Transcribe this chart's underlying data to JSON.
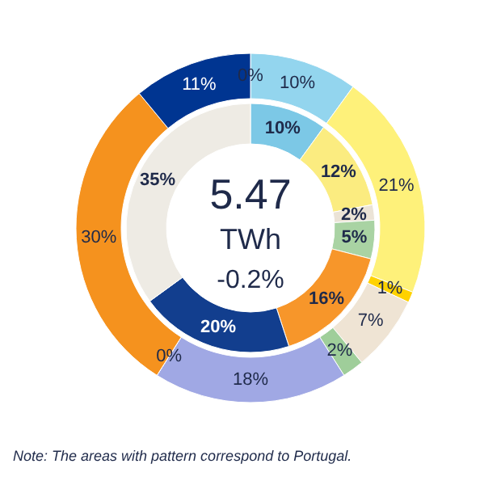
{
  "chart_data": {
    "type": "donut",
    "series": [
      {
        "values": [
          0,
          10,
          21,
          1,
          7,
          2,
          18,
          0,
          30,
          11
        ],
        "colors": [
          "#4d4d4d",
          "#93d5ee",
          "#fef17a",
          "#ffd200",
          "#efe4d4",
          "#9fce9a",
          "#a0a8e4",
          "#4d4d4d",
          "#f5921e",
          "#003591"
        ],
        "value_labels": [
          "0%",
          "10%",
          "21%",
          "1%",
          "7%",
          "2%",
          "18%",
          "0%",
          "30%",
          "11%"
        ]
      },
      {
        "values": [
          10,
          12,
          2,
          5,
          16,
          20,
          35
        ],
        "colors": [
          "#7cc8e6",
          "#fbec80",
          "#ebe3d6",
          "#a9d3a3",
          "#f7962a",
          "#123e8e",
          "#eeebe4"
        ],
        "value_labels": [
          "10%",
          "12%",
          "2%",
          "5%",
          "16%",
          "20%",
          "35%"
        ]
      }
    ],
    "annotations": [
      "5.47",
      "TWh",
      "-0.2%",
      "Note: The  areas with pattern correspond  to Portugal."
    ]
  }
}
